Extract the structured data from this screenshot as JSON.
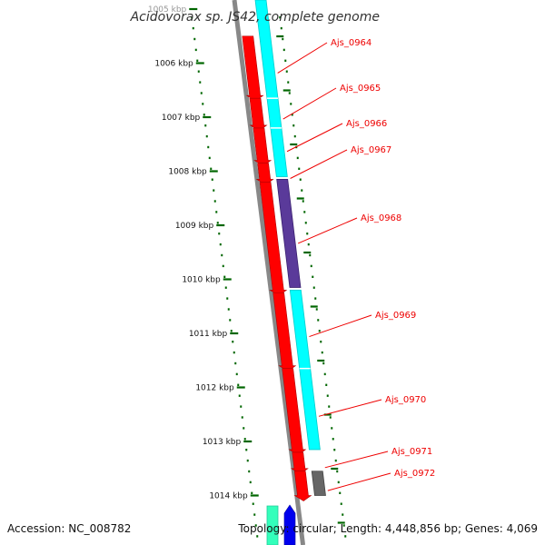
{
  "title": "Acidovorax sp. JS42, complete genome",
  "accession": "Accession: NC_008782",
  "topology": "Topology: circular; Length: 4,448,856 bp; Genes: 4,069",
  "colors": {
    "cds": "#ff0000",
    "cds_dark": "#b00000",
    "cyan": "#00ffff",
    "purple": "#5a3a9a",
    "gray_gene": "#666666",
    "backbone": "#888888",
    "ticks": "#006600",
    "label": "#ee0000",
    "mint": "#33ffbb",
    "blue": "#0000ee"
  },
  "scale": {
    "ticks": [
      {
        "label": "1005 kbp",
        "value": 1005
      },
      {
        "label": "1006 kbp",
        "value": 1006
      },
      {
        "label": "1007 kbp",
        "value": 1007
      },
      {
        "label": "1008 kbp",
        "value": 1008
      },
      {
        "label": "1009 kbp",
        "value": 1009
      },
      {
        "label": "1010 kbp",
        "value": 1010
      },
      {
        "label": "1011 kbp",
        "value": 1011
      },
      {
        "label": "1012 kbp",
        "value": 1012
      },
      {
        "label": "1013 kbp",
        "value": 1013
      },
      {
        "label": "1014 kbp",
        "value": 1014
      }
    ]
  },
  "genes": [
    {
      "label": "Ajs_0964",
      "start": 1005.5,
      "end": 1006.6
    },
    {
      "label": "Ajs_0965",
      "start": 1006.65,
      "end": 1007.15
    },
    {
      "label": "Ajs_0966",
      "start": 1007.2,
      "end": 1007.8
    },
    {
      "label": "Ajs_0967",
      "start": 1007.85,
      "end": 1008.15
    },
    {
      "label": "Ajs_0968",
      "start": 1008.2,
      "end": 1010.2
    },
    {
      "label": "Ajs_0969",
      "start": 1010.25,
      "end": 1011.6
    },
    {
      "label": "Ajs_0970",
      "start": 1011.65,
      "end": 1013.15
    },
    {
      "label": "Ajs_0971",
      "start": 1013.2,
      "end": 1013.5
    },
    {
      "label": "Ajs_0972",
      "start": 1013.55,
      "end": 1014.0
    }
  ]
}
